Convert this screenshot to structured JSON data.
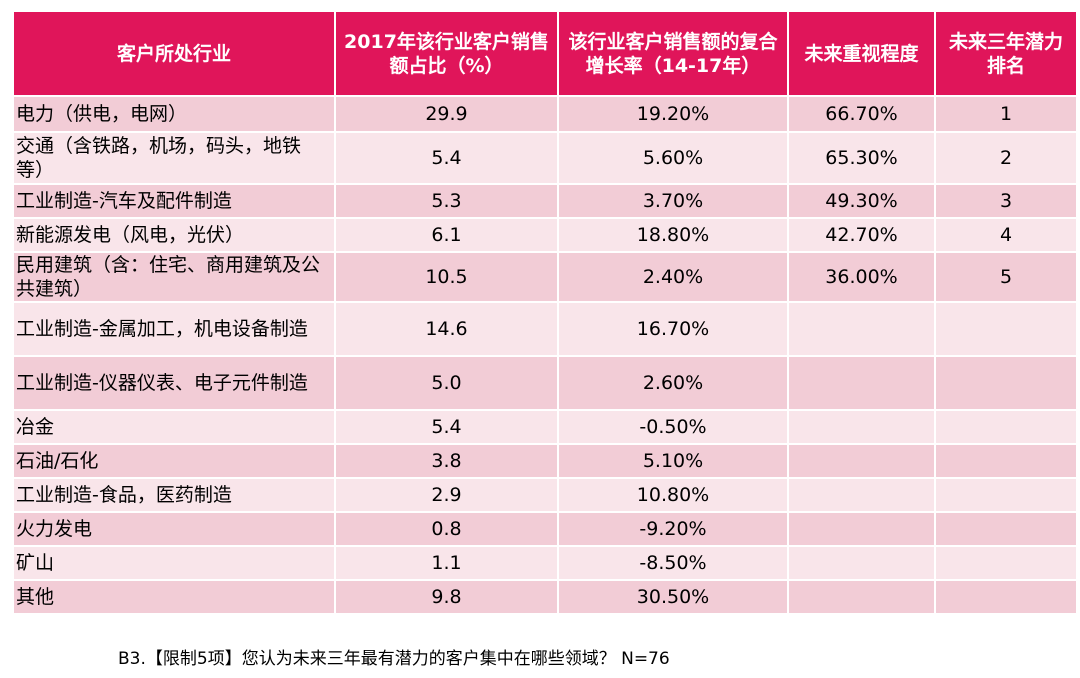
{
  "table": {
    "headers": [
      "客户所处行业",
      "2017年该行业客户销售额占比（%）",
      "该行业客户销售额的复合增长率（14-17年）",
      "未来重视程度",
      "未来三年潜力排名"
    ],
    "rows": [
      {
        "industry": "电力（供电，电网）",
        "share": "29.9",
        "cagr": "19.20%",
        "importance": "66.70%",
        "rank": "1"
      },
      {
        "industry": "交通（含铁路，机场，码头，地铁等）",
        "share": "5.4",
        "cagr": "5.60%",
        "importance": "65.30%",
        "rank": "2"
      },
      {
        "industry": "工业制造-汽车及配件制造",
        "share": "5.3",
        "cagr": "3.70%",
        "importance": "49.30%",
        "rank": "3"
      },
      {
        "industry": "新能源发电（风电，光伏）",
        "share": "6.1",
        "cagr": "18.80%",
        "importance": "42.70%",
        "rank": "4"
      },
      {
        "industry": "民用建筑（含：住宅、商用建筑及公共建筑）",
        "share": "10.5",
        "cagr": "2.40%",
        "importance": "36.00%",
        "rank": "5"
      },
      {
        "industry": "工业制造-金属加工，机电设备制造",
        "share": "14.6",
        "cagr": "16.70%",
        "importance": "",
        "rank": ""
      },
      {
        "industry": "工业制造-仪器仪表、电子元件制造",
        "share": "5.0",
        "cagr": "2.60%",
        "importance": "",
        "rank": ""
      },
      {
        "industry": "冶金",
        "share": "5.4",
        "cagr": "-0.50%",
        "importance": "",
        "rank": ""
      },
      {
        "industry": "石油/石化",
        "share": "3.8",
        "cagr": "5.10%",
        "importance": "",
        "rank": ""
      },
      {
        "industry": "工业制造-食品，医药制造",
        "share": "2.9",
        "cagr": "10.80%",
        "importance": "",
        "rank": ""
      },
      {
        "industry": "火力发电",
        "share": "0.8",
        "cagr": "-9.20%",
        "importance": "",
        "rank": ""
      },
      {
        "industry": "矿山",
        "share": "1.1",
        "cagr": "-8.50%",
        "importance": "",
        "rank": ""
      },
      {
        "industry": "其他",
        "share": "9.8",
        "cagr": "30.50%",
        "importance": "",
        "rank": ""
      }
    ]
  },
  "footnote": "B3.【限制5项】您认为未来三年最有潜力的客户集中在哪些领域？ N=76",
  "colors": {
    "header": "#e0155a",
    "row_odd": "#f2ccd6",
    "row_even": "#f9e5ea"
  }
}
